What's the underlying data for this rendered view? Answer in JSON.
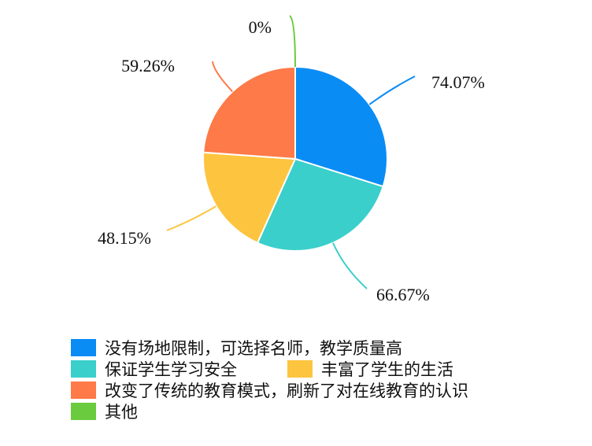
{
  "chart_data": {
    "type": "pie",
    "categories": [
      "没有场地限制，可选择名师，教学质量高",
      "保证学生学习安全",
      "丰富了学生的生活",
      "改变了传统的教育模式，刷新了对在线教育的认识",
      "其他"
    ],
    "values": [
      74.07,
      66.67,
      48.15,
      59.26,
      0
    ],
    "labels": [
      "74.07%",
      "66.67%",
      "48.15%",
      "59.26%",
      "0%"
    ],
    "colors": [
      "#0A8CF5",
      "#3ACFCB",
      "#FDC43F",
      "#FE7A48",
      "#6ACB3E"
    ],
    "legend_position": "bottom-left"
  }
}
